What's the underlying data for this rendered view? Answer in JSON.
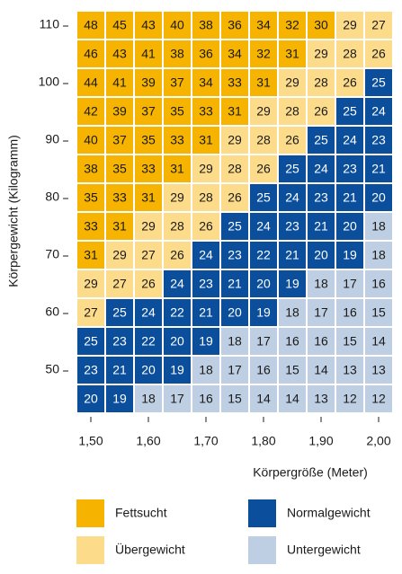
{
  "chart_data": {
    "type": "heatmap",
    "x_label": "Körpergröße (Meter)",
    "y_label": "Körpergewicht (Kilogramm)",
    "x_categories": [
      "1,50",
      null,
      "1,60",
      null,
      "1,70",
      null,
      "1,80",
      null,
      "1,90",
      null,
      "2,00"
    ],
    "y_categories": [
      "110",
      null,
      "100",
      null,
      "90",
      null,
      "80",
      null,
      "70",
      null,
      "60",
      null,
      "50",
      null
    ],
    "values": [
      [
        48,
        45,
        43,
        40,
        38,
        36,
        34,
        32,
        30,
        29,
        27
      ],
      [
        46,
        43,
        41,
        38,
        36,
        34,
        32,
        31,
        29,
        28,
        26
      ],
      [
        44,
        41,
        39,
        37,
        34,
        33,
        31,
        29,
        28,
        26,
        25
      ],
      [
        42,
        39,
        37,
        35,
        33,
        31,
        29,
        28,
        26,
        25,
        24
      ],
      [
        40,
        37,
        35,
        33,
        31,
        29,
        28,
        26,
        25,
        24,
        23
      ],
      [
        38,
        35,
        33,
        31,
        29,
        28,
        26,
        25,
        24,
        23,
        21
      ],
      [
        35,
        33,
        31,
        29,
        28,
        26,
        25,
        24,
        23,
        21,
        20
      ],
      [
        33,
        31,
        29,
        28,
        26,
        25,
        24,
        23,
        21,
        20,
        18
      ],
      [
        31,
        29,
        27,
        26,
        24,
        23,
        22,
        21,
        20,
        19,
        18
      ],
      [
        29,
        27,
        26,
        24,
        23,
        21,
        20,
        19,
        18,
        17,
        16
      ],
      [
        27,
        25,
        24,
        22,
        21,
        20,
        19,
        18,
        17,
        16,
        15
      ],
      [
        25,
        23,
        22,
        20,
        19,
        18,
        17,
        16,
        16,
        15,
        14
      ],
      [
        23,
        21,
        20,
        19,
        18,
        17,
        16,
        15,
        14,
        13,
        13
      ],
      [
        20,
        19,
        18,
        17,
        16,
        15,
        14,
        14,
        13,
        12,
        12
      ]
    ],
    "classes": [
      [
        0,
        0,
        0,
        0,
        0,
        0,
        0,
        0,
        0,
        1,
        1
      ],
      [
        0,
        0,
        0,
        0,
        0,
        0,
        0,
        0,
        1,
        1,
        1
      ],
      [
        0,
        0,
        0,
        0,
        0,
        0,
        0,
        1,
        1,
        1,
        2
      ],
      [
        0,
        0,
        0,
        0,
        0,
        0,
        1,
        1,
        1,
        2,
        2
      ],
      [
        0,
        0,
        0,
        0,
        0,
        1,
        1,
        1,
        2,
        2,
        2
      ],
      [
        0,
        0,
        0,
        0,
        1,
        1,
        1,
        2,
        2,
        2,
        2
      ],
      [
        0,
        0,
        0,
        1,
        1,
        1,
        2,
        2,
        2,
        2,
        2
      ],
      [
        0,
        0,
        1,
        1,
        1,
        2,
        2,
        2,
        2,
        2,
        3
      ],
      [
        0,
        1,
        1,
        1,
        2,
        2,
        2,
        2,
        2,
        2,
        3
      ],
      [
        1,
        1,
        1,
        2,
        2,
        2,
        2,
        2,
        3,
        3,
        3
      ],
      [
        1,
        2,
        2,
        2,
        2,
        2,
        2,
        3,
        3,
        3,
        3
      ],
      [
        2,
        2,
        2,
        2,
        2,
        3,
        3,
        3,
        3,
        3,
        3
      ],
      [
        2,
        2,
        2,
        2,
        3,
        3,
        3,
        3,
        3,
        3,
        3
      ],
      [
        2,
        2,
        3,
        3,
        3,
        3,
        3,
        3,
        3,
        3,
        3
      ]
    ],
    "legend": [
      {
        "name": "Fettsucht",
        "color": "#f6b400",
        "text_color": "#1a1a1a"
      },
      {
        "name": "Übergewicht",
        "color": "#fcdb8b",
        "text_color": "#1a1a1a"
      },
      {
        "name": "Normalgewicht",
        "color": "#0b4f9c",
        "text_color": "#ffffff"
      },
      {
        "name": "Untergewicht",
        "color": "#bfcfe3",
        "text_color": "#1a1a1a"
      }
    ]
  }
}
